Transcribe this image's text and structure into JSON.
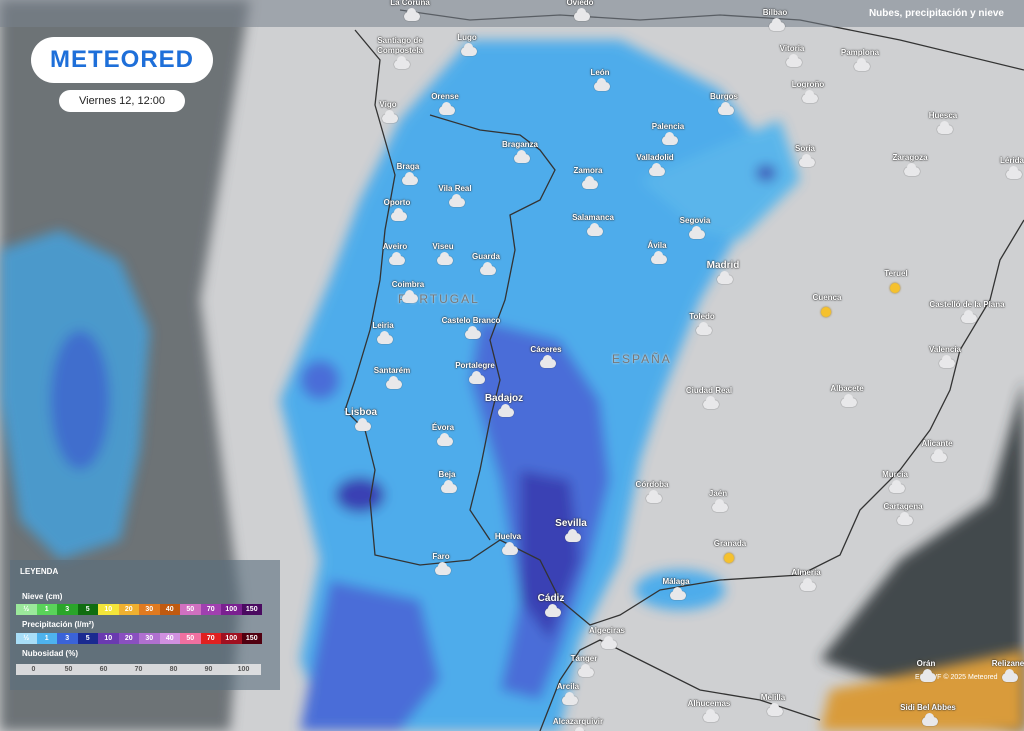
{
  "header": {
    "logo": "METEORED",
    "date": "Viernes 12, 12:00",
    "layer": "Nubes, precipitación y nieve"
  },
  "map": {
    "countries": [
      "PORTUGAL",
      "ESPAÑA"
    ],
    "cities": [
      "La Coruña",
      "Oviedo",
      "Bilbao",
      "Santiago de Compostela",
      "Lugo",
      "León",
      "Vitoria",
      "Pamplona",
      "Logroño",
      "Vigo",
      "Orense",
      "Burgos",
      "Huesca",
      "Palencia",
      "Braganza",
      "Soria",
      "Zaragoza",
      "Lérida",
      "Valladolid",
      "Braga",
      "Zamora",
      "Vila Real",
      "Oporto",
      "Salamanca",
      "Segovia",
      "Aveiro",
      "Viseu",
      "Guarda",
      "Ávila",
      "Madrid",
      "Teruel",
      "Coimbra",
      "Cuenca",
      "Castelló de la Plana",
      "Leiria",
      "Castelo Branco",
      "Toledo",
      "Cáceres",
      "Valencia",
      "Santarém",
      "Portalegre",
      "Ciudad Real",
      "Albacete",
      "Badajoz",
      "Lisboa",
      "Évora",
      "Alicante",
      "Beja",
      "Murcia",
      "Córdoba",
      "Jaén",
      "Cartagena",
      "Sevilla",
      "Huelva",
      "Granada",
      "Faro",
      "Almería",
      "Málaga",
      "Cádiz",
      "Algeciras",
      "Tánger",
      "Orán",
      "Relizane",
      "Arcila",
      "Alhucemas",
      "Melilla",
      "Sidi Bel Abbes",
      "Alcazarquivir"
    ],
    "credit": "ECMWF © 2025 Meteored"
  },
  "legend": {
    "title": "LEYENDA",
    "snow": {
      "label": "Nieve (cm)",
      "steps": [
        "½",
        1,
        3,
        5,
        10,
        20,
        30,
        40,
        50,
        70,
        100,
        150
      ]
    },
    "precipitation": {
      "label": "Precipitación (l/m²)",
      "steps": [
        "½",
        1,
        3,
        5,
        10,
        20,
        30,
        40,
        50,
        70,
        100,
        150
      ]
    },
    "clouds": {
      "label": "Nubosidad (%)",
      "steps": [
        0,
        50,
        60,
        70,
        80,
        90,
        100
      ]
    }
  }
}
